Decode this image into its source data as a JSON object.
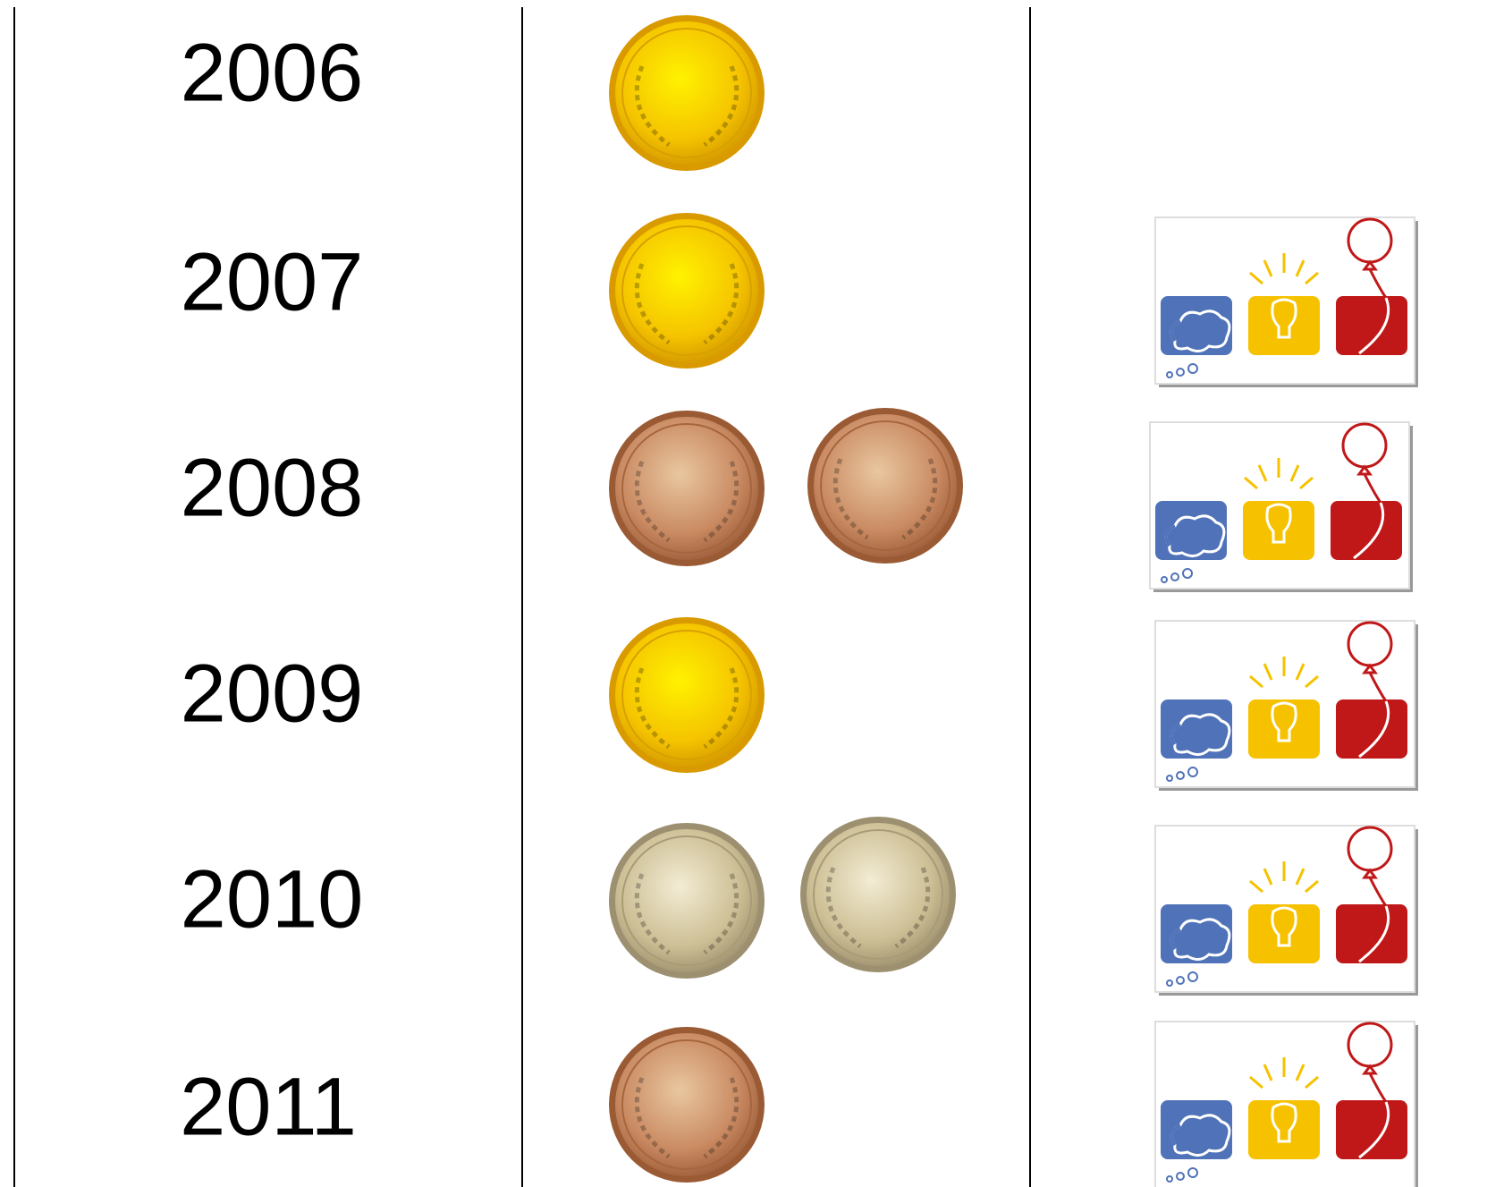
{
  "rows": [
    {
      "year": "2006"
    },
    {
      "year": "2007"
    },
    {
      "year": "2008"
    },
    {
      "year": "2009"
    },
    {
      "year": "2010"
    },
    {
      "year": "2011"
    }
  ]
}
